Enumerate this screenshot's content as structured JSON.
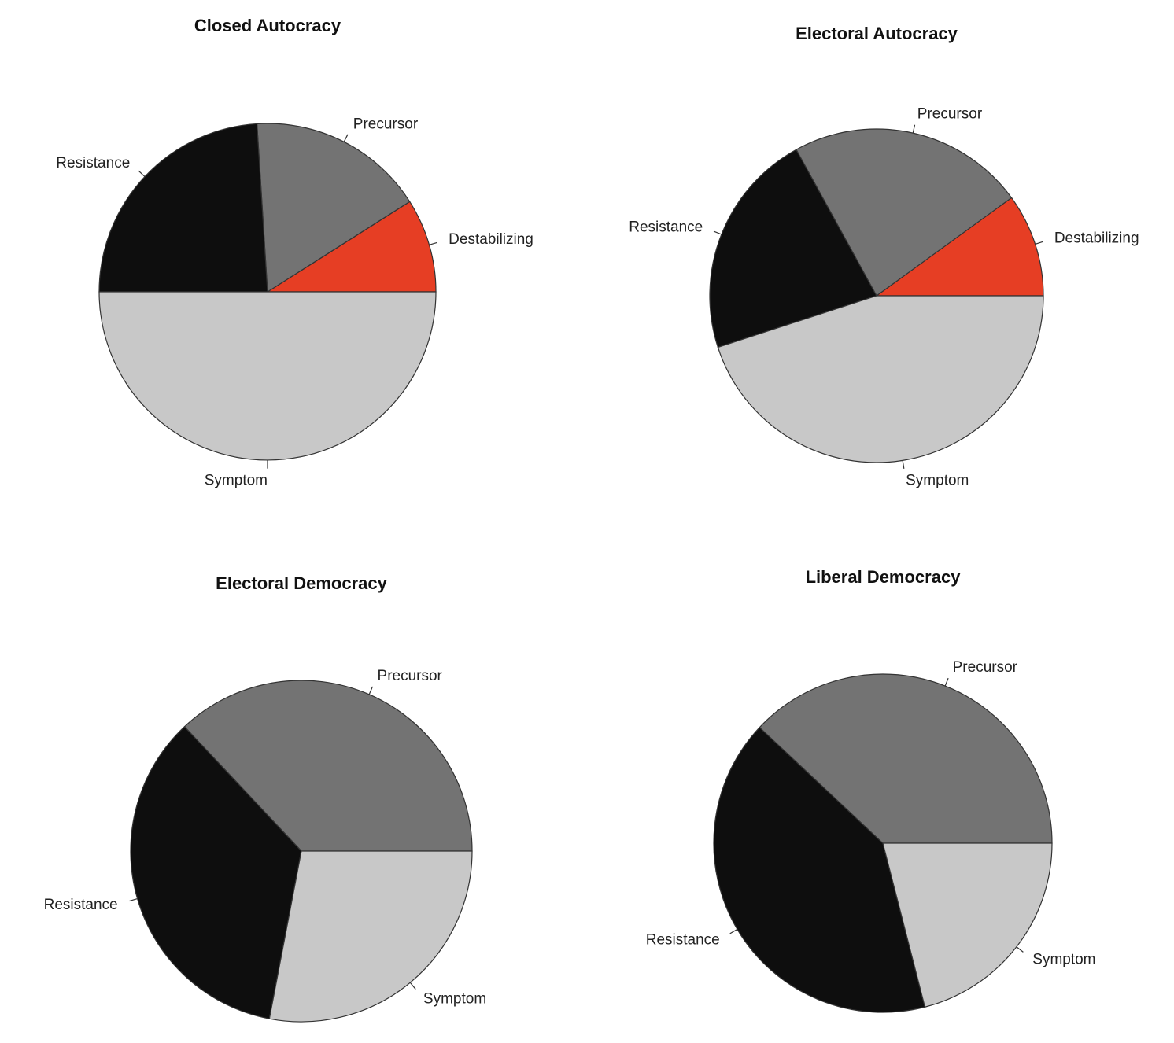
{
  "chart_data": [
    {
      "type": "pie",
      "title": "Closed Autocracy",
      "slices": [
        {
          "label": "Destabilizing",
          "value": 9,
          "color": "#e63e24"
        },
        {
          "label": "Precursor",
          "value": 17,
          "color": "#737373"
        },
        {
          "label": "Resistance",
          "value": 24,
          "color": "#0e0e0e"
        },
        {
          "label": "Symptom",
          "value": 50,
          "color": "#c8c8c8"
        }
      ]
    },
    {
      "type": "pie",
      "title": "Electoral Autocracy",
      "slices": [
        {
          "label": "Destabilizing",
          "value": 10,
          "color": "#e63e24"
        },
        {
          "label": "Precursor",
          "value": 23,
          "color": "#737373"
        },
        {
          "label": "Resistance",
          "value": 22,
          "color": "#0e0e0e"
        },
        {
          "label": "Symptom",
          "value": 45,
          "color": "#c8c8c8"
        }
      ]
    },
    {
      "type": "pie",
      "title": "Electoral Democracy",
      "slices": [
        {
          "label": "Precursor",
          "value": 37,
          "color": "#737373"
        },
        {
          "label": "Resistance",
          "value": 35,
          "color": "#0e0e0e"
        },
        {
          "label": "Symptom",
          "value": 28,
          "color": "#c8c8c8"
        }
      ]
    },
    {
      "type": "pie",
      "title": "Liberal Democracy",
      "slices": [
        {
          "label": "Precursor",
          "value": 38,
          "color": "#737373"
        },
        {
          "label": "Resistance",
          "value": 41,
          "color": "#0e0e0e"
        },
        {
          "label": "Symptom",
          "value": 21,
          "color": "#c8c8c8"
        }
      ]
    }
  ]
}
